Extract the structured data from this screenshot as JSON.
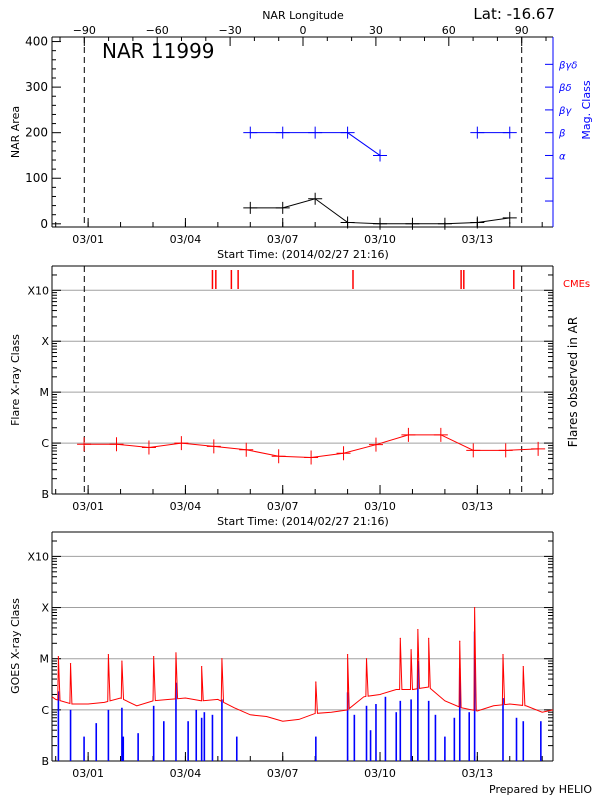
{
  "chart_data": [
    {
      "type": "line",
      "title": "NAR 11999",
      "annotation": "Lat: -16.67",
      "x_axis": {
        "label": "Start Time: (2014/02/27 21:16)",
        "range": [
          "2014-02-27 21:16",
          "2014-03-15 08:00"
        ],
        "tick_labels": [
          "03/01",
          "03/04",
          "03/07",
          "03/10",
          "03/13"
        ],
        "tick_dates": [
          "2014-03-01",
          "2014-03-04",
          "2014-03-07",
          "2014-03-10",
          "2014-03-13"
        ]
      },
      "top_axis": {
        "label": "NAR Longitude",
        "tick_labels": [
          "-90",
          "-60",
          "-30",
          "0",
          "30",
          "60",
          "90"
        ]
      },
      "dashed_lines_longitude": [
        -90,
        90
      ],
      "ylabel": "NAR Area",
      "ylim": [
        -7,
        410
      ],
      "yticks": [
        "0",
        "100",
        "200",
        "300",
        "400"
      ],
      "right_axis": {
        "label": "Mag. Class",
        "tick_labels": [
          "α",
          "β",
          "βγ",
          "βδ",
          "βγδ"
        ],
        "color": "#0000ff"
      },
      "series": [
        {
          "color": "#000000",
          "x": [
            "2014-03-06 00:00",
            "2014-03-07 00:00",
            "2014-03-08 00:00",
            "2014-03-09 00:00",
            "2014-03-10 00:00",
            "2014-03-11 00:00",
            "2014-03-12 00:00",
            "2014-03-13 00:00",
            "2014-03-14 00:00"
          ],
          "values": [
            35,
            35,
            55,
            3,
            0,
            0,
            0,
            3,
            13
          ]
        },
        {
          "color": "#0000ff",
          "x": [
            "2014-03-06 00:00",
            "2014-03-07 00:00",
            "2014-03-08 00:00",
            "2014-03-09 00:00",
            "2014-03-10 00:00",
            "2014-03-13 00:00",
            "2014-03-14 00:00"
          ],
          "values": [
            "β",
            "β",
            "β",
            "β",
            "α",
            "β",
            "β"
          ],
          "segments": [
            [
              0,
              4
            ],
            [
              5,
              6
            ]
          ]
        }
      ]
    },
    {
      "type": "line",
      "x_axis": {
        "label": "Start Time: (2014/02/27 21:16)",
        "range": [
          "2014-02-27 21:16",
          "2014-03-15 08:00"
        ],
        "tick_labels": [
          "03/01",
          "03/04",
          "03/07",
          "03/10",
          "03/13"
        ],
        "tick_dates": [
          "2014-03-01",
          "2014-03-04",
          "2014-03-07",
          "2014-03-10",
          "2014-03-13"
        ]
      },
      "ylabel": "Flare X-ray Class",
      "right_label": "Flares observed in AR",
      "ylim": [
        "B1.0",
        "X30"
      ],
      "y_scale": "log",
      "yticks": [
        "B",
        "C",
        "M",
        "X",
        "X10"
      ],
      "ytick_values": [
        "B1.0",
        "C1.0",
        "M1.0",
        "X1.0",
        "X10"
      ],
      "grid": true,
      "grid_color": "#a0a0a0",
      "dashed_lines_longitude": [
        -90,
        90
      ],
      "series": [
        {
          "color": "#ff0000",
          "x": [
            "2014-02-28 21:00",
            "2014-03-01 21:00",
            "2014-03-02 21:00",
            "2014-03-03 21:00",
            "2014-03-04 21:00",
            "2014-03-05 21:00",
            "2014-03-06 21:00",
            "2014-03-07 21:00",
            "2014-03-08 21:00",
            "2014-03-09 21:00",
            "2014-03-10 21:00",
            "2014-03-11 21:00",
            "2014-03-12 21:00",
            "2014-03-13 21:00",
            "2014-03-14 21:00"
          ],
          "values": [
            "B9.5",
            "B9.5",
            "B8.2",
            "C1.0",
            "B8.6",
            "B7.4",
            "B5.5",
            "B5.2",
            "B6.3",
            "B9.3",
            "C1.45",
            "C1.45",
            "B7.2",
            "B7.2",
            "B7.7"
          ]
        }
      ],
      "cmes": {
        "label": "CMEs",
        "color": "#ff0000",
        "times": [
          "2014-03-04 20:00",
          "2014-03-04 22:30",
          "2014-03-05 10:00",
          "2014-03-05 15:00",
          "2014-03-09 04:00",
          "2014-03-12 12:00",
          "2014-03-12 14:00",
          "2014-03-14 03:00"
        ]
      }
    },
    {
      "type": "line",
      "x_axis": {
        "tick_labels": [
          "03/01",
          "03/04",
          "03/07",
          "03/10",
          "03/13"
        ],
        "tick_dates": [
          "2014-03-01",
          "2014-03-04",
          "2014-03-07",
          "2014-03-10",
          "2014-03-13"
        ],
        "range": [
          "2014-02-27 21:16",
          "2014-03-15 08:00"
        ]
      },
      "ylabel": "GOES X-ray Class",
      "ylim": [
        "B1.0",
        "X30"
      ],
      "y_scale": "log",
      "yticks": [
        "B",
        "C",
        "M",
        "X",
        "X10"
      ],
      "ytick_values": [
        "B1.0",
        "C1.0",
        "M1.0",
        "X1.0",
        "X10"
      ],
      "grid": true,
      "footer": "Prepared by HELIO",
      "series": [
        {
          "color": "#ff0000",
          "background": {
            "x": [
              "2014-02-27 21:16",
              "2014-02-28 00:00",
              "2014-02-28 12:00",
              "2014-03-01 00:00",
              "2014-03-01 12:00",
              "2014-03-02 00:00",
              "2014-03-02 12:00",
              "2014-03-03 00:00",
              "2014-03-03 12:00",
              "2014-03-04 00:00",
              "2014-03-04 12:00",
              "2014-03-05 00:00",
              "2014-03-05 12:00",
              "2014-03-06 00:00",
              "2014-03-06 12:00",
              "2014-03-07 00:00",
              "2014-03-07 12:00",
              "2014-03-08 00:00",
              "2014-03-08 12:00",
              "2014-03-09 00:00",
              "2014-03-09 12:00",
              "2014-03-10 00:00",
              "2014-03-10 12:00",
              "2014-03-11 00:00",
              "2014-03-11 12:00",
              "2014-03-12 00:00",
              "2014-03-12 12:00",
              "2014-03-13 00:00",
              "2014-03-13 12:00",
              "2014-03-14 00:00",
              "2014-03-14 12:00",
              "2014-03-15 00:00",
              "2014-03-15 08:00"
            ],
            "values": [
              "C1.8",
              "C1.6",
              "C1.3",
              "C1.3",
              "C1.4",
              "C1.7",
              "C1.2",
              "C1.5",
              "C1.6",
              "C1.7",
              "C1.5",
              "C1.6",
              "C1.1",
              "B8.0",
              "B7.4",
              "B6.0",
              "B6.5",
              "B8.5",
              "B9.0",
              "C1.0",
              "C1.8",
              "C2.0",
              "C2.5",
              "C2.5",
              "C2.8",
              "C1.5",
              "C1.1",
              "B9.5",
              "C1.2",
              "C1.3",
              "C1.2",
              "B9.0",
              "C1.0"
            ]
          },
          "peaks": {
            "x": [
              "2014-02-28 02:00",
              "2014-02-28 11:00",
              "2014-03-01 15:00",
              "2014-03-02 01:00",
              "2014-03-03 00:30",
              "2014-03-03 17:00",
              "2014-03-04 12:00",
              "2014-03-05 03:00",
              "2014-03-08 00:30",
              "2014-03-09 00:00",
              "2014-03-09 14:00",
              "2014-03-10 15:00",
              "2014-03-10 23:00",
              "2014-03-11 04:00",
              "2014-03-11 12:00",
              "2014-03-12 11:00",
              "2014-03-12 22:00",
              "2014-03-13 19:00",
              "2014-03-14 10:00"
            ],
            "values": [
              "M1.1",
              "C8.0",
              "M1.2",
              "C9.0",
              "M1.1",
              "M1.3",
              "C7.0",
              "M1.0",
              "C3.5",
              "M1.2",
              "M1.0",
              "M2.5",
              "M1.5",
              "M3.7",
              "M2.5",
              "M2.2",
              "X1.0",
              "M1.2",
              "C7.0"
            ]
          }
        },
        {
          "color": "#0000ff",
          "x": [
            "2014-02-28 02:00",
            "2014-02-28 11:00",
            "2014-02-28 21:00",
            "2014-03-01 06:00",
            "2014-03-01 15:00",
            "2014-03-02 01:00",
            "2014-03-02 02:00",
            "2014-03-02 13:00",
            "2014-03-03 00:30",
            "2014-03-03 08:00",
            "2014-03-03 17:00",
            "2014-03-04 02:00",
            "2014-03-04 08:00",
            "2014-03-04 12:00",
            "2014-03-04 14:00",
            "2014-03-04 20:00",
            "2014-03-05 03:00",
            "2014-03-05 14:00",
            "2014-03-08 00:30",
            "2014-03-09 00:00",
            "2014-03-09 05:00",
            "2014-03-09 14:00",
            "2014-03-09 17:00",
            "2014-03-09 21:00",
            "2014-03-10 04:00",
            "2014-03-10 12:00",
            "2014-03-10 15:00",
            "2014-03-10 23:00",
            "2014-03-11 04:00",
            "2014-03-11 12:00",
            "2014-03-11 17:00",
            "2014-03-12 00:00",
            "2014-03-12 07:00",
            "2014-03-12 11:00",
            "2014-03-12 18:00",
            "2014-03-12 22:00",
            "2014-03-13 19:00",
            "2014-03-14 05:00",
            "2014-03-14 10:00",
            "2014-03-14 23:00"
          ],
          "values": [
            "C2.3",
            "C1.0",
            "B3.0",
            "B5.5",
            "C1.0",
            "C1.1",
            "B3.0",
            "B3.5",
            "C1.2",
            "B6.0",
            "C3.4",
            "B6.0",
            "C1.0",
            "B7.0",
            "B9.0",
            "B8.0",
            "C1.6",
            "B3.0",
            "B3.0",
            "C2.2",
            "B8.0",
            "C1.2",
            "B4.0",
            "C1.3",
            "C1.8",
            "B9.0",
            "C1.5",
            "C1.6",
            "C9.0",
            "C1.5",
            "B8.0",
            "B3.0",
            "B7.0",
            "C6.5",
            "B9.0",
            "M3.4",
            "C1.7",
            "B7.0",
            "B6.0",
            "B6.0"
          ]
        }
      ]
    }
  ]
}
